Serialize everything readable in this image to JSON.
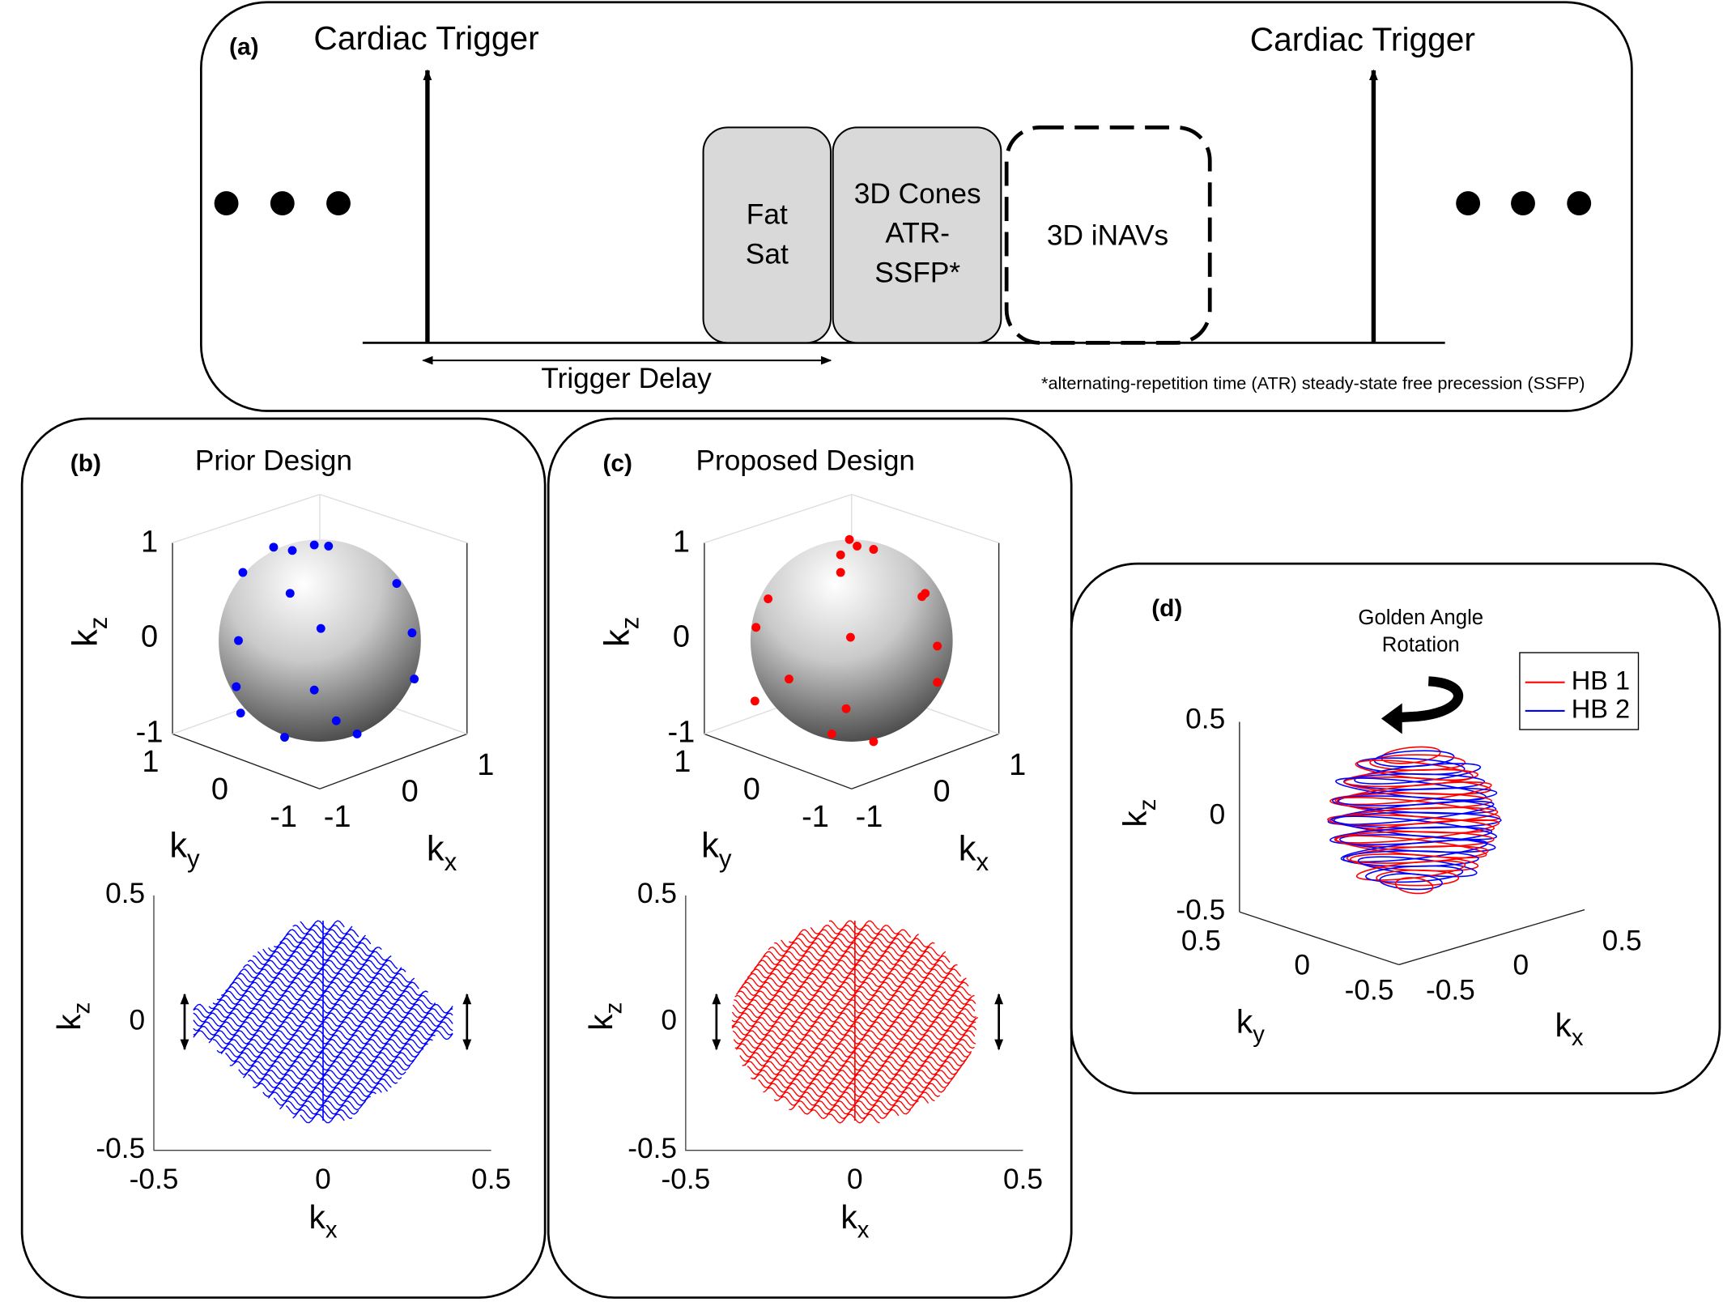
{
  "panel_a": {
    "label": "(a)",
    "trigger_left": "Cardiac Trigger",
    "trigger_right": "Cardiac Trigger",
    "fat_sat": [
      "Fat",
      "Sat"
    ],
    "cones": [
      "3D Cones",
      "ATR-",
      "SSFP*"
    ],
    "inavs": "3D iNAVs",
    "trigger_delay": "Trigger Delay",
    "footnote": "*alternating-repetition time (ATR) steady-state free precession (SSFP)"
  },
  "panel_b": {
    "label": "(b)",
    "title": "Prior Design",
    "sphere": {
      "kz_ticks": [
        "1",
        "0",
        "-1"
      ],
      "ky_ticks": [
        "1",
        "0",
        "-1"
      ],
      "kx_ticks": [
        "-1",
        "0",
        "1"
      ],
      "kz": {
        "main": "k",
        "sub": "z"
      },
      "ky": {
        "main": "k",
        "sub": "y"
      },
      "kx": {
        "main": "k",
        "sub": "x"
      }
    },
    "plot": {
      "y_ticks": [
        "0.5",
        "0",
        "-0.5"
      ],
      "x_ticks": [
        "-0.5",
        "0",
        "0.5"
      ],
      "y_label": {
        "main": "k",
        "sub": "z"
      },
      "x_label": {
        "main": "k",
        "sub": "x"
      }
    }
  },
  "panel_c": {
    "label": "(c)",
    "title": "Proposed Design",
    "sphere": {
      "kz_ticks": [
        "1",
        "0",
        "-1"
      ],
      "ky_ticks": [
        "1",
        "0",
        "-1"
      ],
      "kx_ticks": [
        "-1",
        "0",
        "1"
      ],
      "kz": {
        "main": "k",
        "sub": "z"
      },
      "ky": {
        "main": "k",
        "sub": "y"
      },
      "kx": {
        "main": "k",
        "sub": "x"
      }
    },
    "plot": {
      "y_ticks": [
        "0.5",
        "0",
        "-0.5"
      ],
      "x_ticks": [
        "-0.5",
        "0",
        "0.5"
      ],
      "y_label": {
        "main": "k",
        "sub": "z"
      },
      "x_label": {
        "main": "k",
        "sub": "x"
      }
    }
  },
  "panel_d": {
    "label": "(d)",
    "rotation_label": [
      "Golden Angle",
      "Rotation"
    ],
    "legend": [
      "HB 1",
      "HB 2"
    ],
    "kz_ticks": [
      "0.5",
      "0",
      "-0.5"
    ],
    "ky_ticks": [
      "0.5",
      "0",
      "-0.5"
    ],
    "kx_ticks": [
      "-0.5",
      "0",
      "0.5"
    ],
    "kz": {
      "main": "k",
      "sub": "z"
    },
    "ky": {
      "main": "k",
      "sub": "y"
    },
    "kx": {
      "main": "k",
      "sub": "x"
    }
  }
}
